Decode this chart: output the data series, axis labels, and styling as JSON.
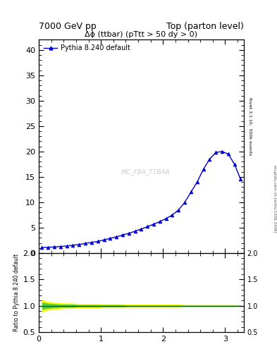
{
  "title_left": "7000 GeV pp",
  "title_right": "Top (parton level)",
  "plot_title": "Δϕ (ttbar) (pTtt > 50 dy > 0)",
  "watermark": "MC_FBA_TTBAR",
  "right_label_top": "Rivet 3.1.10,  500k events",
  "arxiv_label": "mcplots.cern.ch [arXiv:1306.3436]",
  "legend_label": "Pythia 8.240 default",
  "line_color": "#0000cc",
  "marker_color": "#0000cc",
  "x_data": [
    0.05,
    0.15,
    0.25,
    0.35,
    0.45,
    0.55,
    0.65,
    0.75,
    0.85,
    0.95,
    1.05,
    1.15,
    1.25,
    1.35,
    1.45,
    1.55,
    1.65,
    1.75,
    1.85,
    1.95,
    2.05,
    2.15,
    2.25,
    2.35,
    2.45,
    2.55,
    2.65,
    2.75,
    2.85,
    2.95,
    3.05,
    3.15,
    3.25
  ],
  "y_data": [
    1.1,
    1.15,
    1.2,
    1.3,
    1.4,
    1.55,
    1.7,
    1.9,
    2.1,
    2.3,
    2.6,
    2.9,
    3.2,
    3.55,
    3.9,
    4.3,
    4.75,
    5.2,
    5.7,
    6.2,
    6.8,
    7.5,
    8.5,
    10.0,
    12.0,
    14.0,
    16.5,
    18.5,
    19.8,
    20.0,
    19.5,
    17.5,
    14.5
  ],
  "ylim_main": [
    0,
    42
  ],
  "yticks_main": [
    0,
    5,
    10,
    15,
    20,
    25,
    30,
    35,
    40
  ],
  "xlim": [
    0,
    3.3
  ],
  "xticks": [
    0,
    1,
    2,
    3
  ],
  "ylim_ratio": [
    0.5,
    2.0
  ],
  "yticks_ratio": [
    0.5,
    1.0,
    1.5,
    2.0
  ],
  "ratio_band_yellow_lower": [
    0.88,
    0.92,
    0.93,
    0.94,
    0.95,
    0.95,
    0.96,
    0.96,
    0.96,
    0.96,
    0.97,
    0.97,
    0.97,
    0.97,
    0.97,
    0.97,
    0.97,
    0.97,
    0.97,
    0.97,
    0.97,
    0.97,
    0.97,
    0.98,
    0.98,
    0.98,
    0.98,
    0.98,
    0.98,
    0.98,
    0.98,
    0.98,
    0.99
  ],
  "ratio_band_yellow_upper": [
    1.12,
    1.08,
    1.07,
    1.06,
    1.05,
    1.05,
    1.04,
    1.04,
    1.04,
    1.04,
    1.03,
    1.03,
    1.03,
    1.03,
    1.03,
    1.03,
    1.03,
    1.03,
    1.03,
    1.03,
    1.03,
    1.03,
    1.03,
    1.02,
    1.02,
    1.02,
    1.02,
    1.02,
    1.02,
    1.02,
    1.02,
    1.02,
    1.01
  ],
  "ratio_band_green_lower": [
    0.93,
    0.95,
    0.96,
    0.97,
    0.97,
    0.97,
    0.98,
    0.98,
    0.98,
    0.98,
    0.98,
    0.98,
    0.98,
    0.98,
    0.99,
    0.99,
    0.99,
    0.99,
    0.99,
    0.99,
    0.99,
    0.99,
    0.99,
    0.99,
    0.99,
    0.99,
    0.99,
    0.99,
    0.99,
    0.99,
    0.99,
    0.99,
    0.99
  ],
  "ratio_band_green_upper": [
    1.07,
    1.05,
    1.04,
    1.03,
    1.03,
    1.03,
    1.02,
    1.02,
    1.02,
    1.02,
    1.02,
    1.02,
    1.02,
    1.02,
    1.01,
    1.01,
    1.01,
    1.01,
    1.01,
    1.01,
    1.01,
    1.01,
    1.01,
    1.01,
    1.01,
    1.01,
    1.01,
    1.01,
    1.01,
    1.01,
    1.01,
    1.01,
    1.01
  ],
  "bg_color": "#ffffff"
}
